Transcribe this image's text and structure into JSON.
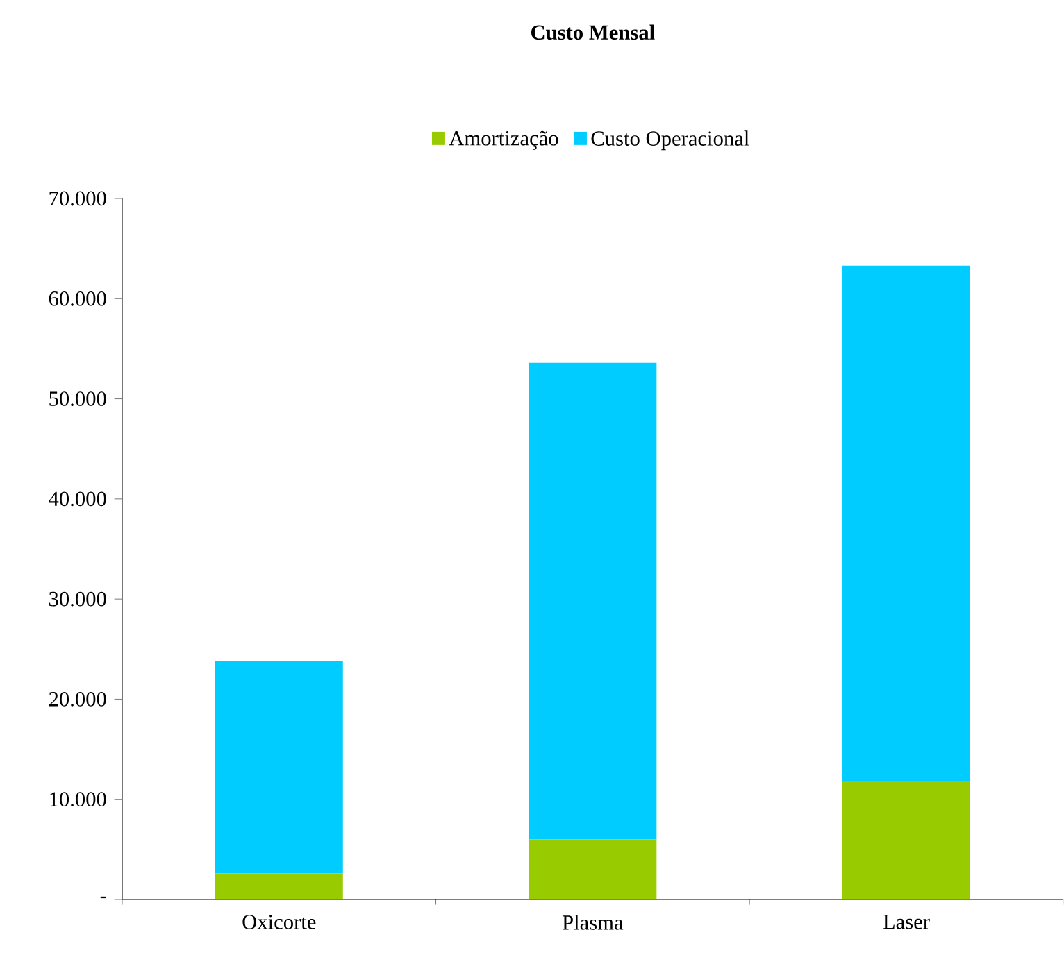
{
  "chart_data": {
    "type": "bar",
    "title": "Custo Mensal",
    "stacked": true,
    "legend": "top",
    "categories": [
      "Oxicorte",
      "Plasma",
      "Laser"
    ],
    "series": [
      {
        "name": "Amortização",
        "color": "#99cc00",
        "values": [
          2600,
          6000,
          11800
        ]
      },
      {
        "name": "Custo Operacional",
        "color": "#00ccff",
        "values": [
          21200,
          47600,
          51500
        ]
      }
    ],
    "ylim": [
      0,
      70000
    ],
    "yticks": [
      {
        "value": 0,
        "label": "-"
      },
      {
        "value": 10000,
        "label": "10.000"
      },
      {
        "value": 20000,
        "label": "20.000"
      },
      {
        "value": 30000,
        "label": "30.000"
      },
      {
        "value": 40000,
        "label": "40.000"
      },
      {
        "value": 50000,
        "label": "50.000"
      },
      {
        "value": 60000,
        "label": "60.000"
      },
      {
        "value": 70000,
        "label": "70.000"
      }
    ],
    "grid": false
  }
}
